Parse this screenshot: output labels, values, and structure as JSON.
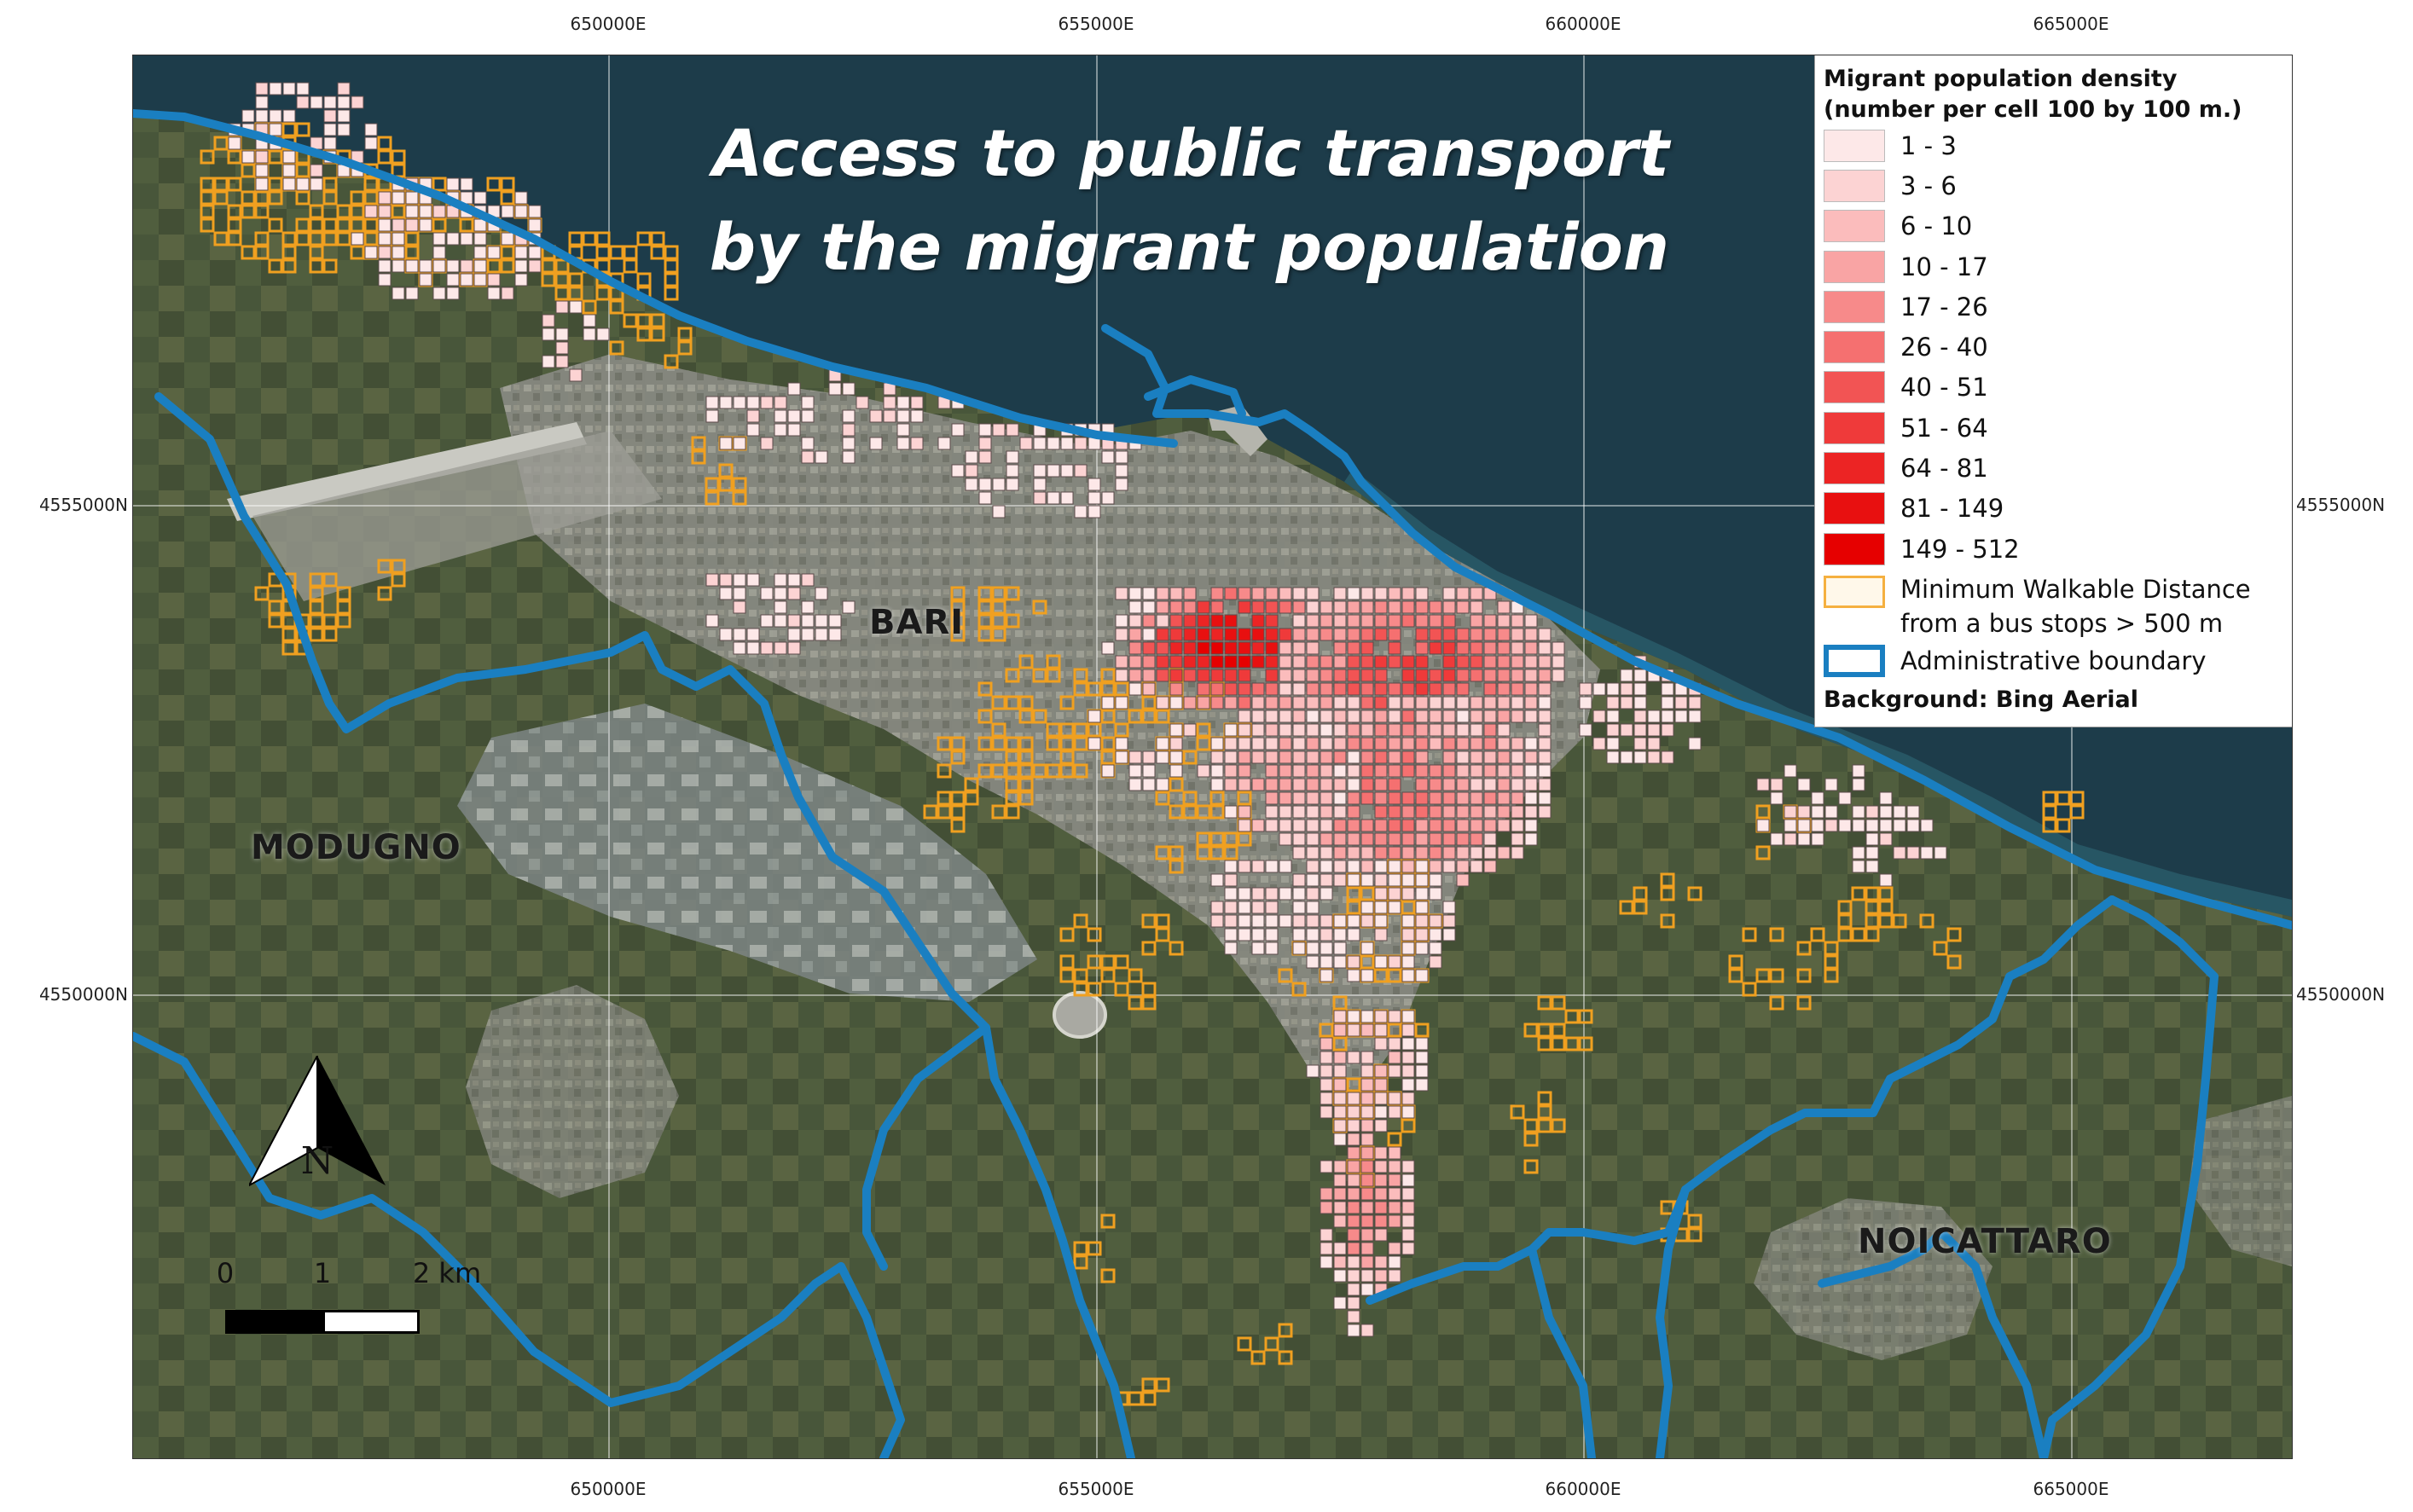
{
  "map": {
    "title_line1": "Access to public transport",
    "title_line2": "by the migrant population",
    "places": {
      "bari": "BARI",
      "modugno": "MODUGNO",
      "noicattaro": "NOICATTARO"
    },
    "coords": {
      "top": [
        "650000E",
        "655000E",
        "660000E",
        "665000E"
      ],
      "bottom": [
        "650000E",
        "655000E",
        "660000E",
        "665000E"
      ],
      "left": [
        "4555000N",
        "4550000N"
      ],
      "right": [
        "4555000N",
        "4550000N"
      ]
    },
    "colors": {
      "sea": "#1d3c4a",
      "land": "#48563a",
      "urban": "#8f8f88",
      "boundary": "#1a7fc1",
      "walk_outline": "#f0a020"
    }
  },
  "legend": {
    "title_line1": "Migrant population density",
    "title_line2": "(number per cell 100 by 100 m.)",
    "classes": [
      {
        "label": "1 - 3",
        "color": "#fde8e8"
      },
      {
        "label": "3 - 6",
        "color": "#fcd3d3"
      },
      {
        "label": "6 - 10",
        "color": "#fbbcbc"
      },
      {
        "label": "10 - 17",
        "color": "#f9a4a4"
      },
      {
        "label": "17 - 26",
        "color": "#f78a8a"
      },
      {
        "label": "26 - 40",
        "color": "#f57070"
      },
      {
        "label": "40 - 51",
        "color": "#f25454"
      },
      {
        "label": "51 - 64",
        "color": "#ef3a3a"
      },
      {
        "label": "64 - 81",
        "color": "#ec2424"
      },
      {
        "label": "81 - 149",
        "color": "#e81010"
      },
      {
        "label": "149 - 512",
        "color": "#e60000"
      }
    ],
    "walk_line1": "Minimum Walkable Distance",
    "walk_line2": "from a bus stops > 500 m",
    "boundary_label": "Administrative boundary",
    "background": "Background: Bing Aerial"
  },
  "scale": {
    "label_0": "0",
    "label_1": "1",
    "label_2": "2 km"
  },
  "north": {
    "letter": "N"
  }
}
